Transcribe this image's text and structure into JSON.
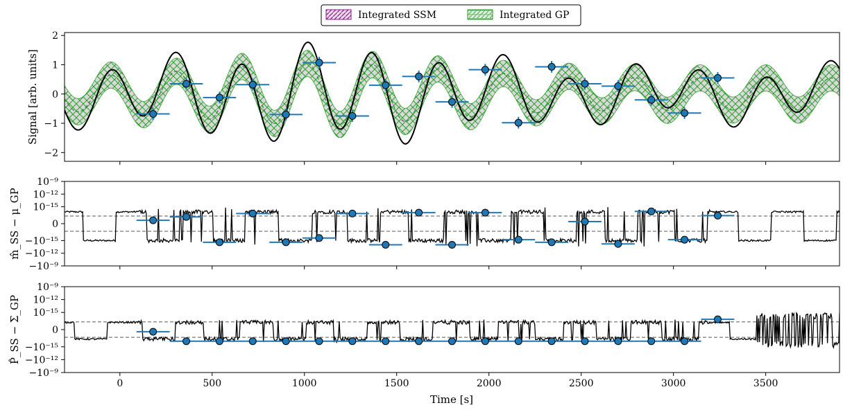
{
  "chart_data": {
    "type": "line",
    "xlabel": "Time [s]",
    "xlim": [
      -300,
      3900
    ],
    "xticks": [
      {
        "v": 0,
        "label": "0"
      },
      {
        "v": 500,
        "label": "500"
      },
      {
        "v": 1000,
        "label": "1000"
      },
      {
        "v": 1500,
        "label": "1500"
      },
      {
        "v": 2000,
        "label": "2000"
      },
      {
        "v": 2500,
        "label": "2500"
      },
      {
        "v": 3000,
        "label": "3000"
      },
      {
        "v": 3500,
        "label": "3500"
      }
    ],
    "legend": {
      "location": "top-center",
      "entries": [
        {
          "label": "Integrated SSM",
          "color": "#8b1a8b",
          "hatch": "diagonal"
        },
        {
          "label": "Integrated GP",
          "color": "#2ca02c",
          "hatch": "dashed-cross"
        }
      ]
    },
    "colors": {
      "true_signal": "#000000",
      "gp_mean": "#2ca02c",
      "ssm_mean": "#8b1a8b",
      "band_fill": "#d3d3d3",
      "band_hatch": "#2ca02c",
      "points": "#1f77b4",
      "refline": "#555555"
    },
    "panels": [
      {
        "id": "signal",
        "ylabel": "Signal [arb. units]",
        "ylim": [
          -2.3,
          2.1
        ],
        "yticks": [
          {
            "v": 2,
            "label": "2"
          },
          {
            "v": 1,
            "label": "1"
          },
          {
            "v": 0,
            "label": "0"
          },
          {
            "v": -1,
            "label": "−1"
          },
          {
            "v": -2,
            "label": "−2"
          }
        ],
        "band_halfwidth": 0.45,
        "points": [
          {
            "x": 180,
            "y": -0.68
          },
          {
            "x": 360,
            "y": 0.35
          },
          {
            "x": 540,
            "y": -0.12
          },
          {
            "x": 720,
            "y": 0.32
          },
          {
            "x": 900,
            "y": -0.7
          },
          {
            "x": 1080,
            "y": 1.07
          },
          {
            "x": 1260,
            "y": -0.75
          },
          {
            "x": 1440,
            "y": 0.3
          },
          {
            "x": 1620,
            "y": 0.6
          },
          {
            "x": 1800,
            "y": -0.27
          },
          {
            "x": 1980,
            "y": 0.83
          },
          {
            "x": 2160,
            "y": -0.98
          },
          {
            "x": 2340,
            "y": 0.93
          },
          {
            "x": 2520,
            "y": 0.35
          },
          {
            "x": 2700,
            "y": 0.27
          },
          {
            "x": 2880,
            "y": -0.2
          },
          {
            "x": 3060,
            "y": -0.65
          },
          {
            "x": 3240,
            "y": 0.55
          }
        ],
        "x_halfwidth": 90,
        "y_err": 0.2
      },
      {
        "id": "mean-diff",
        "ylabel": "m̂_SS − μ_GP",
        "ylim": [
          -10,
          10
        ],
        "yticks": [
          {
            "v": 10,
            "label": "10⁻⁹"
          },
          {
            "v": 7,
            "label": "10⁻¹²"
          },
          {
            "v": 4,
            "label": "10⁻¹⁵"
          },
          {
            "v": 0,
            "label": "0"
          },
          {
            "v": -4,
            "label": "−10⁻¹⁵"
          },
          {
            "v": -7,
            "label": "−10⁻¹²"
          },
          {
            "v": -10,
            "label": "−10⁻⁹"
          }
        ],
        "reflines": [
          1.8,
          -1.8
        ],
        "points": [
          {
            "x": 180,
            "y": 0.8
          },
          {
            "x": 360,
            "y": 1.6
          },
          {
            "x": 540,
            "y": -4.4
          },
          {
            "x": 720,
            "y": 2.4
          },
          {
            "x": 900,
            "y": -4.4
          },
          {
            "x": 1080,
            "y": -3.4
          },
          {
            "x": 1260,
            "y": 2.4
          },
          {
            "x": 1440,
            "y": -5.0
          },
          {
            "x": 1620,
            "y": 2.6
          },
          {
            "x": 1800,
            "y": -5.0
          },
          {
            "x": 1980,
            "y": 2.6
          },
          {
            "x": 2160,
            "y": -3.8
          },
          {
            "x": 2340,
            "y": -4.4
          },
          {
            "x": 2520,
            "y": 0.5
          },
          {
            "x": 2700,
            "y": -4.8
          },
          {
            "x": 2880,
            "y": 2.9
          },
          {
            "x": 3060,
            "y": -3.8
          },
          {
            "x": 3240,
            "y": 1.9
          }
        ],
        "x_halfwidth": 90
      },
      {
        "id": "cov-diff",
        "ylabel": "P̂_SS − Σ_GP",
        "ylim": [
          -10,
          10
        ],
        "yticks": [
          {
            "v": 10,
            "label": "10⁻⁹"
          },
          {
            "v": 7,
            "label": "10⁻¹²"
          },
          {
            "v": 4,
            "label": "10⁻¹⁵"
          },
          {
            "v": 0,
            "label": "0"
          },
          {
            "v": -4,
            "label": "−10⁻¹⁵"
          },
          {
            "v": -7,
            "label": "−10⁻¹²"
          },
          {
            "v": -10,
            "label": "−10⁻⁹"
          }
        ],
        "tick_labels_overlap": {
          "v": 4,
          "label": "15"
        },
        "reflines": [
          1.8,
          -1.8
        ],
        "points": [
          {
            "x": 180,
            "y": -0.5
          },
          {
            "x": 360,
            "y": -2.7
          },
          {
            "x": 540,
            "y": -2.7
          },
          {
            "x": 720,
            "y": -2.7
          },
          {
            "x": 900,
            "y": -2.7
          },
          {
            "x": 1080,
            "y": -2.7
          },
          {
            "x": 1260,
            "y": -2.7
          },
          {
            "x": 1440,
            "y": -2.7
          },
          {
            "x": 1620,
            "y": -2.7
          },
          {
            "x": 1800,
            "y": -2.7
          },
          {
            "x": 1980,
            "y": -2.7
          },
          {
            "x": 2160,
            "y": -2.7
          },
          {
            "x": 2340,
            "y": -2.7
          },
          {
            "x": 2520,
            "y": -2.7
          },
          {
            "x": 2700,
            "y": -2.7
          },
          {
            "x": 2880,
            "y": -2.7
          },
          {
            "x": 3060,
            "y": -2.7
          },
          {
            "x": 3240,
            "y": 2.4
          }
        ],
        "x_halfwidth": 90
      }
    ]
  }
}
